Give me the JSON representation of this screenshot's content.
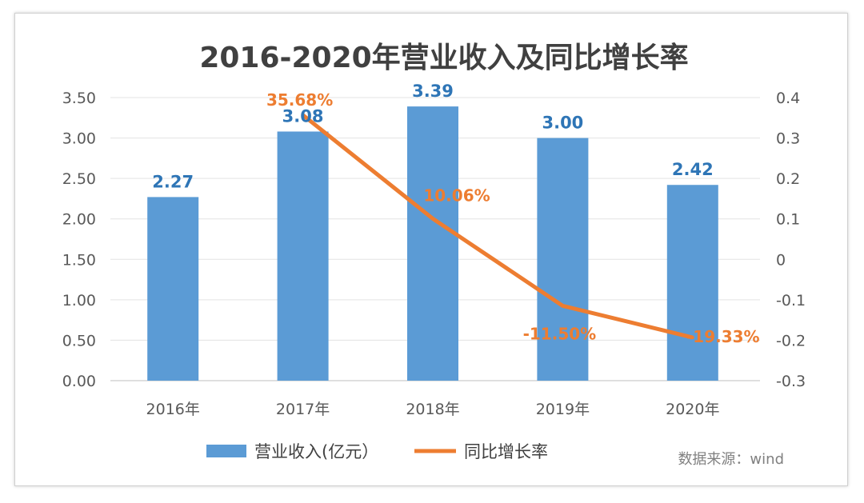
{
  "chart_data": {
    "type": "bar+line",
    "title": "2016-2020年营业收入及同比增长率",
    "categories": [
      "2016年",
      "2017年",
      "2018年",
      "2019年",
      "2020年"
    ],
    "series": [
      {
        "name": "营业收入(亿元）",
        "type": "bar",
        "axis": "left",
        "values": [
          2.27,
          3.08,
          3.39,
          3.0,
          2.42
        ],
        "labels": [
          "2.27",
          "3.08",
          "3.39",
          "3.00",
          "2.42"
        ],
        "color": "#5B9BD5"
      },
      {
        "name": "同比增长率",
        "type": "line",
        "axis": "right",
        "values": [
          null,
          0.3568,
          0.1006,
          -0.115,
          -0.1933
        ],
        "labels": [
          "",
          "35.68%",
          "10.06%",
          "-11.50%",
          "-19.33%"
        ],
        "color": "#ED7D31"
      }
    ],
    "left_axis": {
      "ylim": [
        0,
        3.5
      ],
      "ticks": [
        "0.00",
        "0.50",
        "1.00",
        "1.50",
        "2.00",
        "2.50",
        "3.00",
        "3.50"
      ]
    },
    "right_axis": {
      "ylim": [
        -0.3,
        0.4
      ],
      "ticks": [
        "-0.3",
        "-0.2",
        "-0.1",
        "0",
        "0.1",
        "0.2",
        "0.3",
        "0.4"
      ]
    },
    "grid": true,
    "legend": "bottom",
    "source": "数据来源：wind"
  }
}
